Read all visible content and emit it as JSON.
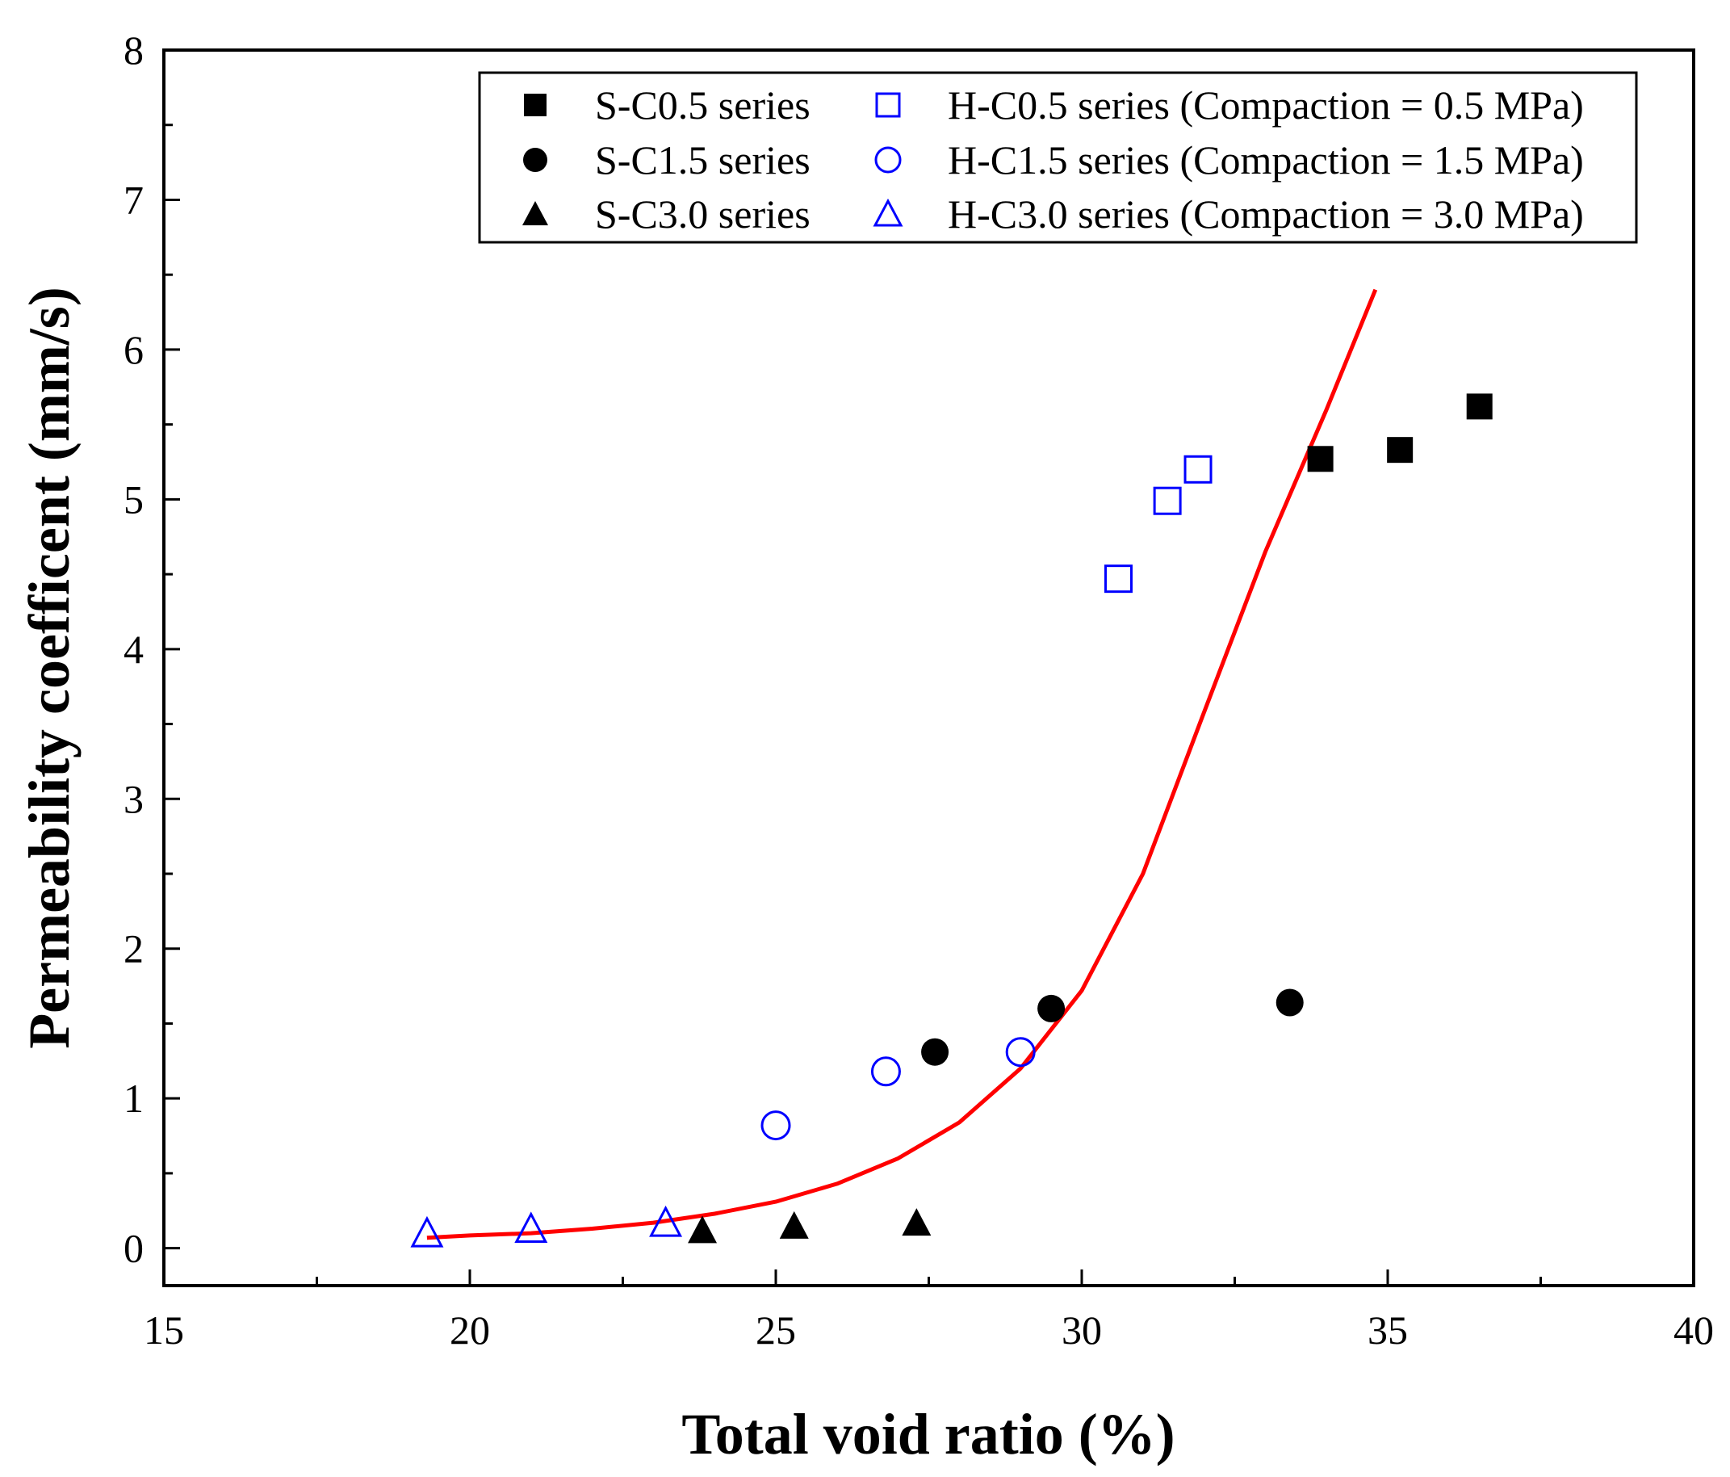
{
  "chart_data": {
    "type": "scatter",
    "xlabel": "Total void ratio (%)",
    "ylabel": "Permeability coefficent (mm/s)",
    "xlim": [
      15,
      40
    ],
    "ylim": [
      -0.25,
      8
    ],
    "x_ticks": [
      15,
      20,
      25,
      30,
      35,
      40
    ],
    "y_ticks": [
      0,
      1,
      2,
      3,
      4,
      5,
      6,
      7,
      8
    ],
    "legend_position": "top-right",
    "grid": false,
    "series": [
      {
        "name": "S-C0.5 series",
        "marker": "square",
        "filled": true,
        "color": "#000000",
        "points": [
          [
            33.9,
            5.27
          ],
          [
            35.2,
            5.33
          ],
          [
            36.5,
            5.62
          ]
        ]
      },
      {
        "name": "S-C1.5 series",
        "marker": "circle",
        "filled": true,
        "color": "#000000",
        "points": [
          [
            27.6,
            1.31
          ],
          [
            29.5,
            1.6
          ],
          [
            33.4,
            1.64
          ]
        ]
      },
      {
        "name": "S-C3.0 series",
        "marker": "triangle",
        "filled": true,
        "color": "#000000",
        "points": [
          [
            23.8,
            0.12
          ],
          [
            25.3,
            0.15
          ],
          [
            27.3,
            0.17
          ]
        ]
      },
      {
        "name": "H-C0.5 series (Compaction = 0.5 MPa)",
        "marker": "square",
        "filled": false,
        "color": "#0000ff",
        "points": [
          [
            30.6,
            4.47
          ],
          [
            31.4,
            4.99
          ],
          [
            31.9,
            5.2
          ]
        ]
      },
      {
        "name": "H-C1.5 series (Compaction = 1.5 MPa)",
        "marker": "circle",
        "filled": false,
        "color": "#0000ff",
        "points": [
          [
            25.0,
            0.82
          ],
          [
            26.8,
            1.18
          ],
          [
            29.0,
            1.31
          ]
        ]
      },
      {
        "name": "H-C3.0 series (Compaction = 3.0 MPa)",
        "marker": "triangle",
        "filled": false,
        "color": "#0000ff",
        "points": [
          [
            19.3,
            0.1
          ],
          [
            21.0,
            0.13
          ],
          [
            23.2,
            0.17
          ]
        ]
      }
    ],
    "fit_curve": {
      "color": "#ff0000",
      "points": [
        [
          19.3,
          0.07
        ],
        [
          20,
          0.085
        ],
        [
          21,
          0.1
        ],
        [
          22,
          0.13
        ],
        [
          23,
          0.17
        ],
        [
          24,
          0.23
        ],
        [
          25,
          0.31
        ],
        [
          26,
          0.43
        ],
        [
          27,
          0.6
        ],
        [
          28,
          0.84
        ],
        [
          29,
          1.2
        ],
        [
          30,
          1.72
        ],
        [
          31,
          2.5
        ],
        [
          32,
          3.58
        ],
        [
          33,
          4.65
        ],
        [
          34,
          5.6
        ],
        [
          34.8,
          6.4
        ]
      ]
    }
  }
}
